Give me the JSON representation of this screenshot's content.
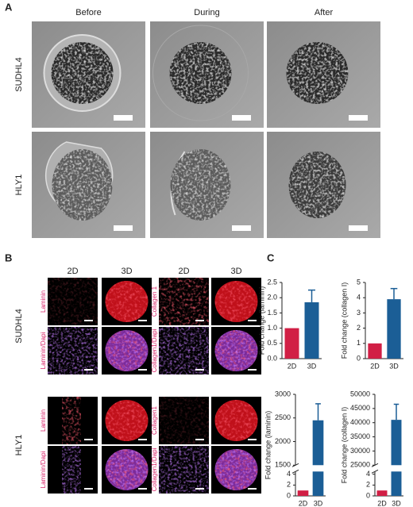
{
  "panels": {
    "a": {
      "label": "A",
      "columns": [
        "Before",
        "During",
        "After"
      ],
      "rows": [
        "SUDHL4",
        "HLY1"
      ]
    },
    "b": {
      "label": "B",
      "columns": [
        "2D",
        "3D",
        "2D",
        "3D"
      ],
      "rows": [
        "SUDHL4",
        "HLY1"
      ],
      "stains": [
        [
          "Laminin",
          "Laminin/Dapi",
          "Collagen 1",
          "Collagen1/Dapi"
        ],
        [
          "Laminin",
          "Laminin/Dapi",
          "Collagen1",
          "Collagen1/Dapi"
        ]
      ]
    },
    "c": {
      "label": "C"
    }
  },
  "chart_data": [
    {
      "type": "bar",
      "ylabel": "Fold change (laminin)",
      "categories": [
        "2D",
        "3D"
      ],
      "values": [
        1,
        1.85
      ],
      "errors": [
        null,
        0.4
      ],
      "colors": [
        "#d11f45",
        "#1b5e96"
      ],
      "ylim": [
        0,
        2.5
      ],
      "yticks": [
        {
          "value": 0,
          "label": "0.0"
        },
        {
          "value": 0.5,
          "label": "0.5"
        },
        {
          "value": 1,
          "label": "1.0"
        },
        {
          "value": 1.5,
          "label": "1.5"
        },
        {
          "value": 2,
          "label": "2.0"
        },
        {
          "value": 2.5,
          "label": "2.5"
        }
      ]
    },
    {
      "type": "bar",
      "ylabel": "Fold change (collagen I)",
      "categories": [
        "2D",
        "3D"
      ],
      "values": [
        1,
        3.9
      ],
      "errors": [
        null,
        0.7
      ],
      "colors": [
        "#d11f45",
        "#1b5e96"
      ],
      "ylim": [
        0,
        5
      ],
      "yticks": [
        0,
        1,
        2,
        3,
        4,
        5
      ]
    },
    {
      "type": "bar",
      "ylabel": "Fold change (laminin)",
      "categories": [
        "2D",
        "3D"
      ],
      "values": [
        1,
        2450
      ],
      "errors": [
        null,
        350
      ],
      "colors": [
        "#d11f45",
        "#1b5e96"
      ],
      "ylim": [
        0,
        3000
      ],
      "ybreak": [
        4.5,
        1500
      ],
      "yticks": [
        0,
        2,
        4,
        1500,
        2000,
        2500,
        3000
      ]
    },
    {
      "type": "bar",
      "ylabel": "Fold change (collagen I)",
      "categories": [
        "2D",
        "3D"
      ],
      "values": [
        1,
        41000
      ],
      "errors": [
        null,
        5500
      ],
      "colors": [
        "#d11f45",
        "#1b5e96"
      ],
      "ylim": [
        0,
        50000
      ],
      "ybreak": [
        4.5,
        25000
      ],
      "yticks": [
        0,
        2,
        4,
        25000,
        30000,
        35000,
        40000,
        45000,
        50000
      ]
    }
  ]
}
